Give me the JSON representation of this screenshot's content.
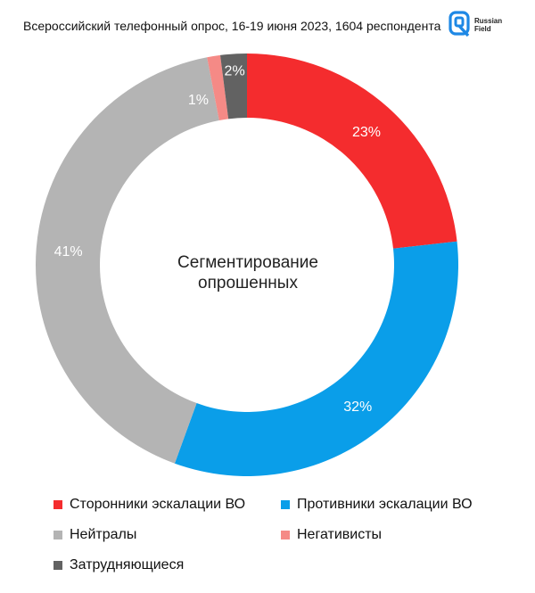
{
  "subtitle": "Всероссийский телефонный опрос, 16-19 июня 2023, 1604 респондента",
  "logo": {
    "line1": "Russian",
    "line2": "Field",
    "icon": "russian-field-logo",
    "color": "#1e88e5"
  },
  "center_label": {
    "line1": "Сегментирование",
    "line2": "опрошенных"
  },
  "chart_data": {
    "type": "pie",
    "donut": true,
    "categories": [
      "Сторонники эскалации ВО",
      "Противники эскалации ВО",
      "Нейтралы",
      "Негативисты",
      "Затрудняющиеся"
    ],
    "values": [
      23,
      32,
      41,
      1,
      2
    ],
    "labels": [
      "23%",
      "32%",
      "41%",
      "1%",
      "2%"
    ],
    "colors": [
      "#f42c2e",
      "#0a9ee9",
      "#b4b4b4",
      "#f58a86",
      "#626262"
    ],
    "legend_position": "bottom"
  }
}
